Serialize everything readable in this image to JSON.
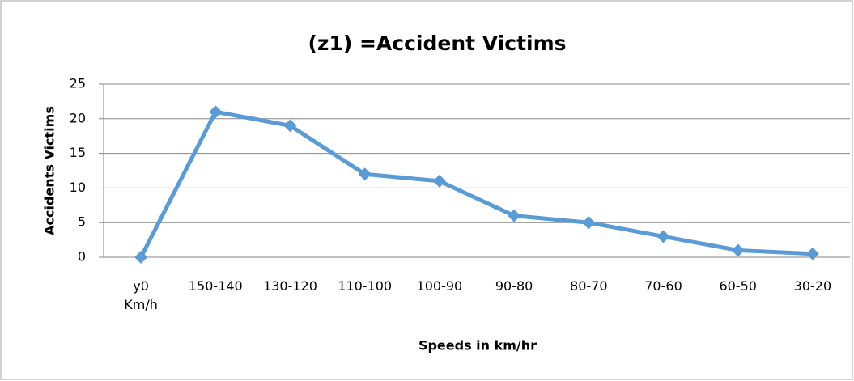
{
  "chart_data": {
    "type": "line",
    "title": "(z1) =Accident Victims",
    "y_label": "Accidents Victims",
    "x_label": "Speeds in km/hr",
    "categories": [
      "y0\nKm/h",
      "150-140",
      "130-120",
      "110-100",
      "100-90",
      "90-80",
      "80-70",
      "70-60",
      "60-50",
      "30-20"
    ],
    "series": [
      {
        "name": "Accident Victims",
        "color": "#5b9bd5",
        "values": [
          0,
          21,
          19,
          12,
          11,
          6,
          5,
          3,
          1,
          0.5
        ]
      }
    ],
    "ylim": [
      0,
      25
    ],
    "yticks": [
      0,
      5,
      10,
      15,
      20,
      25
    ],
    "grid": true
  }
}
